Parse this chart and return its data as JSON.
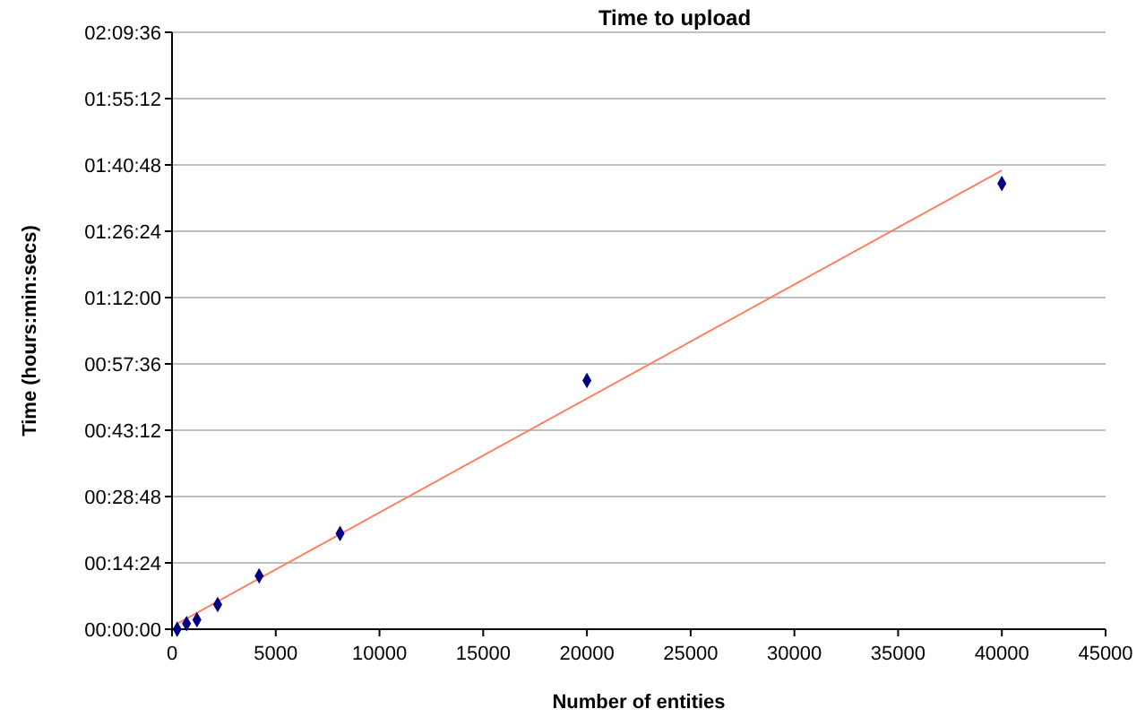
{
  "chart_data": {
    "type": "scatter",
    "title": "Time to upload",
    "xlabel": "Number of entities",
    "ylabel": "Time (hours:min:secs)",
    "xlim": [
      0,
      45000
    ],
    "xticks": [
      0,
      5000,
      10000,
      15000,
      20000,
      25000,
      30000,
      35000,
      40000,
      45000
    ],
    "ylim": [
      0,
      2.16
    ],
    "yticks": [
      {
        "value": 0,
        "label": "00:00:00"
      },
      {
        "value": 0.24,
        "label": "00:14:24"
      },
      {
        "value": 0.48,
        "label": "00:28:48"
      },
      {
        "value": 0.72,
        "label": "00:43:12"
      },
      {
        "value": 0.96,
        "label": "00:57:36"
      },
      {
        "value": 1.2,
        "label": "01:12:00"
      },
      {
        "value": 1.44,
        "label": "01:26:24"
      },
      {
        "value": 1.68,
        "label": "01:40:48"
      },
      {
        "value": 1.92,
        "label": "01:55:12"
      },
      {
        "value": 2.16,
        "label": "02:09:36"
      }
    ],
    "grid": "y",
    "series": [
      {
        "type": "scatter",
        "marker": "diamond",
        "color": "#000080",
        "x": [
          250,
          700,
          1200,
          2200,
          4200,
          8100,
          20000,
          40000
        ],
        "values": [
          0,
          0.02,
          0.034,
          0.089,
          0.193,
          0.346,
          0.9,
          1.613
        ]
      },
      {
        "type": "line",
        "color": "#ff8060",
        "line_style": "solid",
        "x": [
          250,
          40000
        ],
        "values": [
          0.02,
          1.66
        ]
      }
    ]
  }
}
